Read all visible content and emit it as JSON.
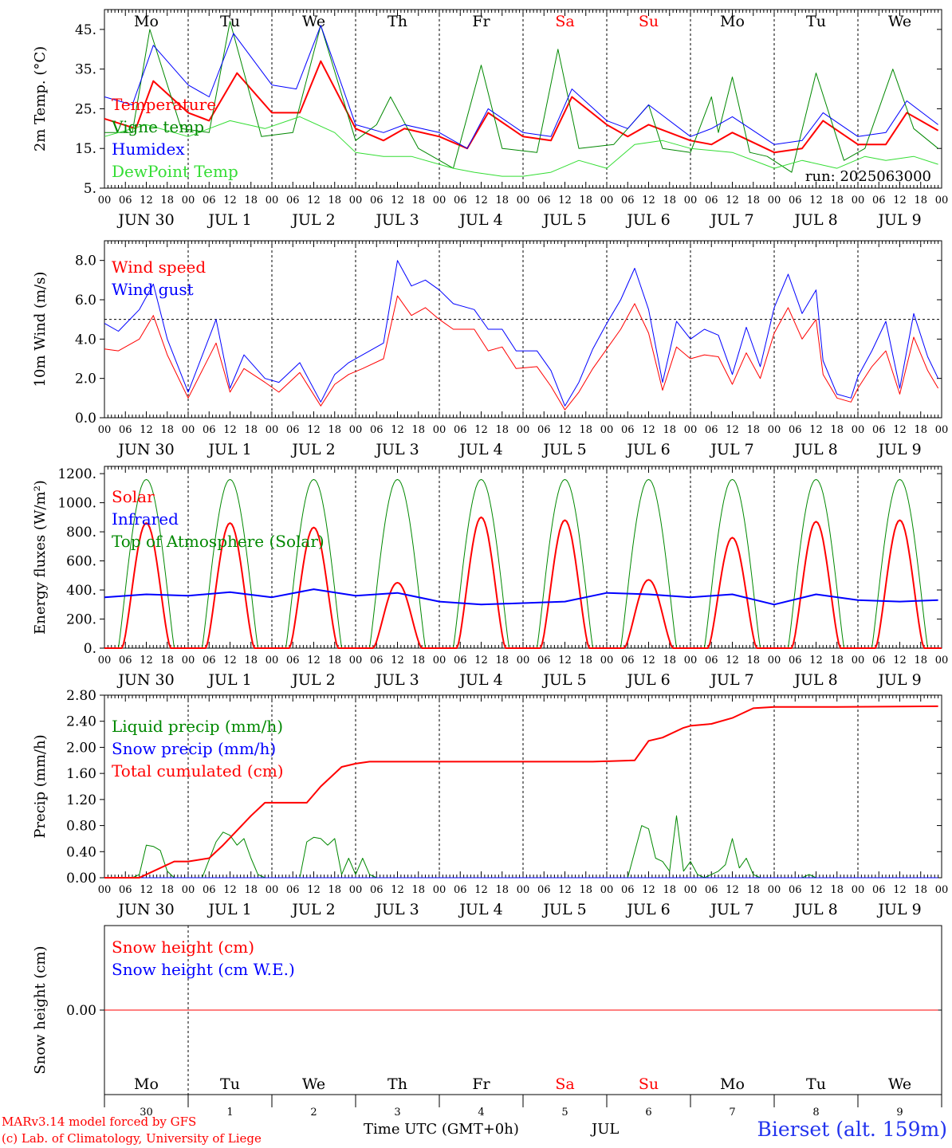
{
  "colors": {
    "red": "#ff0000",
    "green": "#008800",
    "blue": "#0000ff",
    "lightgreen": "#33dd33",
    "weekend": "#ff0000",
    "axis": "#000000",
    "station": "#2233ee"
  },
  "days": [
    "Mo",
    "Tu",
    "We",
    "Th",
    "Fr",
    "Sa",
    "Su",
    "Mo",
    "Tu",
    "We"
  ],
  "weekend_days": [
    5,
    6
  ],
  "date_labels": [
    "JUN 30",
    "JUL  1",
    "JUL  2",
    "JUL  3",
    "JUL  4",
    "JUL  5",
    "JUL  6",
    "JUL  7",
    "JUL  8",
    "JUL  9"
  ],
  "day_numbers": [
    "30",
    "1",
    "2",
    "3",
    "4",
    "5",
    "6",
    "7",
    "8",
    "9"
  ],
  "hour_labels": [
    "00",
    "06",
    "12",
    "18"
  ],
  "month_label": "JUL",
  "footer": {
    "model_line": "MARv3.14 model forced by GFS",
    "lab_line": "(c) Lab. of Climatology, University of Liege",
    "time_label": "Time UTC (GMT+0h)",
    "station": "Bierset (alt. 159m)"
  },
  "chart_data": [
    {
      "type": "line",
      "ylabel": "2m Temp. (°C)",
      "run_label": "run: 2025063000",
      "ylim": [
        5,
        50
      ],
      "yticks": [
        5,
        15,
        25,
        35,
        45
      ],
      "ytick_labels": [
        "5.",
        "15.",
        "25.",
        "35.",
        "45."
      ],
      "series": [
        {
          "name": "Temperature",
          "color": "#ff0000",
          "width": 2,
          "x": [
            0,
            9,
            14,
            24,
            30,
            38,
            48,
            56,
            62,
            72,
            80,
            86,
            96,
            104,
            110,
            120,
            128,
            134,
            144,
            150,
            156,
            168,
            174,
            180,
            192,
            200,
            206,
            216,
            224,
            230,
            239
          ],
          "y": [
            22.5,
            20,
            32,
            24,
            22,
            34,
            24,
            24,
            37,
            20,
            17,
            20,
            18,
            15,
            24,
            18,
            17,
            28,
            21,
            18,
            21,
            17,
            16,
            19,
            14,
            15,
            22,
            16,
            16,
            24,
            19.5
          ]
        },
        {
          "name": "Vigne temp",
          "color": "#008800",
          "width": 1,
          "x": [
            0,
            8,
            13,
            22,
            30,
            36,
            45,
            54,
            62,
            72,
            78,
            82,
            90,
            100,
            108,
            114,
            124,
            130,
            136,
            146,
            152,
            156,
            160,
            168,
            174,
            176,
            180,
            185,
            190,
            197,
            204,
            212,
            218,
            226,
            232,
            239
          ],
          "y": [
            19,
            19,
            45,
            20,
            19,
            47,
            18,
            19,
            46,
            17,
            21,
            28,
            15,
            10,
            36,
            15,
            14,
            40,
            15,
            16,
            22,
            26,
            15,
            14,
            28,
            19,
            33,
            14,
            13,
            9,
            34,
            12,
            15,
            35,
            20,
            15
          ]
        },
        {
          "name": "Humidex",
          "color": "#0000ff",
          "width": 1,
          "x": [
            0,
            8,
            14,
            24,
            30,
            37,
            48,
            55,
            62,
            72,
            80,
            86,
            96,
            104,
            110,
            120,
            128,
            134,
            144,
            150,
            156,
            168,
            174,
            180,
            192,
            200,
            206,
            216,
            224,
            230,
            239
          ],
          "y": [
            28,
            26,
            41,
            31,
            28,
            44,
            31,
            30,
            46,
            21,
            19,
            21,
            19,
            15,
            25,
            19,
            18,
            30,
            22,
            20,
            26,
            18,
            20,
            23,
            16,
            17,
            24,
            18,
            19,
            27,
            21
          ]
        },
        {
          "name": "DewPoint Temp",
          "color": "#33dd33",
          "width": 1,
          "x": [
            0,
            12,
            24,
            36,
            46,
            56,
            66,
            72,
            80,
            88,
            100,
            106,
            114,
            120,
            128,
            136,
            144,
            152,
            160,
            168,
            180,
            192,
            200,
            210,
            218,
            224,
            232,
            239
          ],
          "y": [
            18,
            21,
            18,
            22,
            20,
            23,
            19,
            14,
            13,
            13,
            10,
            9,
            8,
            8,
            9,
            12,
            10,
            16,
            17,
            15,
            14,
            10,
            12,
            10,
            13,
            12,
            13,
            11
          ]
        }
      ]
    },
    {
      "type": "line",
      "ylabel": "10m Wind (m/s)",
      "ylim": [
        0,
        9
      ],
      "yticks": [
        0,
        2,
        4,
        6,
        8
      ],
      "ytick_labels": [
        "0.0",
        "2.0",
        "4.0",
        "6.0",
        "8.0"
      ],
      "reference_line": 5,
      "series": [
        {
          "name": "Wind speed",
          "color": "#ff0000",
          "width": 1,
          "x": [
            0,
            4,
            10,
            14,
            18,
            24,
            32,
            36,
            40,
            46,
            50,
            56,
            62,
            66,
            70,
            74,
            80,
            84,
            88,
            92,
            96,
            100,
            106,
            110,
            114,
            118,
            124,
            128,
            132,
            136,
            140,
            144,
            148,
            152,
            156,
            160,
            164,
            168,
            172,
            176,
            180,
            184,
            188,
            192,
            196,
            200,
            204,
            206,
            210,
            214,
            216,
            220,
            224,
            228,
            232,
            236,
            239
          ],
          "y": [
            3.5,
            3.4,
            4.0,
            5.2,
            3.2,
            1.0,
            3.8,
            1.3,
            2.5,
            1.8,
            1.3,
            2.3,
            0.6,
            1.7,
            2.2,
            2.5,
            3.0,
            6.2,
            5.2,
            5.6,
            5.0,
            4.5,
            4.5,
            3.4,
            3.6,
            2.5,
            2.6,
            1.6,
            0.4,
            1.3,
            2.5,
            3.5,
            4.5,
            5.8,
            4.3,
            1.4,
            3.6,
            3.0,
            3.2,
            3.1,
            1.7,
            3.3,
            2.0,
            4.3,
            5.6,
            4.0,
            5.0,
            2.2,
            1.0,
            0.8,
            1.5,
            2.6,
            3.4,
            1.2,
            4.1,
            2.4,
            1.5
          ]
        },
        {
          "name": "Wind gust",
          "color": "#0000ff",
          "width": 1,
          "x": [
            0,
            4,
            10,
            14,
            18,
            24,
            32,
            36,
            40,
            46,
            50,
            56,
            62,
            66,
            70,
            74,
            80,
            84,
            88,
            92,
            96,
            100,
            106,
            110,
            114,
            118,
            124,
            128,
            132,
            136,
            140,
            144,
            148,
            152,
            156,
            160,
            164,
            168,
            172,
            176,
            180,
            184,
            188,
            192,
            196,
            200,
            204,
            206,
            210,
            214,
            216,
            220,
            224,
            228,
            232,
            236,
            239
          ],
          "y": [
            4.8,
            4.4,
            5.5,
            6.8,
            4.0,
            1.3,
            5.0,
            1.5,
            3.2,
            2.0,
            1.8,
            2.8,
            0.8,
            2.2,
            2.8,
            3.2,
            3.8,
            8.0,
            6.7,
            7.0,
            6.5,
            5.8,
            5.5,
            4.5,
            4.5,
            3.4,
            3.4,
            2.4,
            0.6,
            1.8,
            3.5,
            4.8,
            6.0,
            7.6,
            5.5,
            1.8,
            4.9,
            4.0,
            4.5,
            4.2,
            2.2,
            4.6,
            2.6,
            5.6,
            7.3,
            5.3,
            6.5,
            2.9,
            1.2,
            1.0,
            2.1,
            3.4,
            4.9,
            1.5,
            5.3,
            3.1,
            2.0
          ]
        }
      ]
    },
    {
      "type": "line",
      "ylabel": "Energy fluxes (W/m²)",
      "ylim": [
        0,
        1250
      ],
      "yticks": [
        0,
        200,
        400,
        600,
        800,
        1000,
        1200
      ],
      "ytick_labels": [
        "0.",
        "200.",
        "400.",
        "600.",
        "800.",
        "1000.",
        "1200."
      ],
      "series_toa": {
        "name": "Top of Atmosphere (Solar)",
        "color": "#008800",
        "peak": 1160,
        "start_hour": 4,
        "end_hour": 20
      },
      "series_solar": {
        "name": "Solar",
        "color": "#ff0000",
        "daily_peaks": [
          860,
          860,
          830,
          450,
          900,
          880,
          470,
          760,
          870,
          880
        ],
        "start_hour": 5,
        "end_hour": 19
      },
      "series_ir": {
        "name": "Infrared",
        "color": "#0000ff",
        "x": [
          0,
          12,
          24,
          36,
          48,
          60,
          72,
          84,
          96,
          108,
          120,
          132,
          144,
          156,
          168,
          180,
          192,
          204,
          216,
          228,
          239
        ],
        "y": [
          350,
          370,
          360,
          385,
          350,
          405,
          360,
          380,
          320,
          300,
          310,
          320,
          380,
          370,
          350,
          370,
          300,
          370,
          330,
          320,
          330
        ]
      }
    },
    {
      "type": "line",
      "ylabel": "Precip (mm/h)",
      "ylim": [
        0,
        2.8
      ],
      "yticks": [
        0,
        0.4,
        0.8,
        1.2,
        1.6,
        2.0,
        2.4,
        2.8
      ],
      "ytick_labels": [
        "0.00",
        "0.40",
        "0.80",
        "1.20",
        "1.60",
        "2.00",
        "2.40",
        "2.80"
      ],
      "series": [
        {
          "name": "Liquid precip (mm/h)",
          "color": "#008800",
          "width": 1,
          "x": [
            0,
            8,
            10,
            12,
            14,
            16,
            18,
            20,
            28,
            32,
            34,
            36,
            38,
            40,
            42,
            44,
            46,
            48,
            56,
            58,
            60,
            62,
            64,
            66,
            68,
            70,
            72,
            74,
            76,
            78,
            80,
            96,
            150,
            154,
            156,
            158,
            160,
            162,
            164,
            166,
            168,
            170,
            172,
            174,
            176,
            178,
            180,
            182,
            184,
            186,
            188,
            190,
            192,
            200,
            202,
            204,
            239
          ],
          "y": [
            0,
            0,
            0.05,
            0.5,
            0.48,
            0.42,
            0.1,
            0,
            0,
            0.55,
            0.7,
            0.65,
            0.5,
            0.6,
            0.3,
            0.05,
            0,
            0,
            0,
            0.55,
            0.62,
            0.6,
            0.5,
            0.6,
            0.05,
            0.3,
            0.05,
            0.3,
            0.05,
            0,
            0,
            0,
            0,
            0.8,
            0.75,
            0.3,
            0.25,
            0.1,
            0.95,
            0.1,
            0.25,
            0.05,
            0,
            0.05,
            0.1,
            0.2,
            0.6,
            0.15,
            0.3,
            0.05,
            0,
            0,
            0,
            0,
            0.05,
            0,
            0
          ]
        },
        {
          "name": "Snow precip (mm/h)",
          "color": "#0000ff",
          "width": 1,
          "x": [
            0,
            239
          ],
          "y": [
            0,
            0
          ]
        },
        {
          "name": "Total cumulated (cm)",
          "color": "#ff0000",
          "width": 2,
          "x": [
            0,
            10,
            14,
            20,
            24,
            30,
            34,
            42,
            46,
            50,
            58,
            62,
            68,
            72,
            76,
            80,
            92,
            100,
            120,
            140,
            152,
            156,
            160,
            166,
            168,
            174,
            180,
            186,
            192,
            210,
            239
          ],
          "y": [
            0,
            0,
            0.1,
            0.25,
            0.25,
            0.3,
            0.5,
            0.95,
            1.15,
            1.15,
            1.15,
            1.4,
            1.7,
            1.75,
            1.78,
            1.78,
            1.78,
            1.78,
            1.78,
            1.78,
            1.8,
            2.1,
            2.15,
            2.3,
            2.33,
            2.36,
            2.45,
            2.6,
            2.62,
            2.62,
            2.63
          ]
        }
      ]
    },
    {
      "type": "line",
      "ylabel": "Snow height (cm)",
      "ylim": [
        -1,
        1
      ],
      "yticks": [
        0
      ],
      "ytick_labels": [
        "0.00"
      ],
      "series": [
        {
          "name": "Snow height (cm)",
          "color": "#ff0000",
          "width": 1,
          "x": [
            0,
            239
          ],
          "y": [
            0,
            0
          ]
        },
        {
          "name": "Snow height (cm W.E.)",
          "color": "#0000ff",
          "width": 1,
          "x": [
            0,
            239
          ],
          "y": [
            0,
            0
          ]
        }
      ]
    }
  ]
}
